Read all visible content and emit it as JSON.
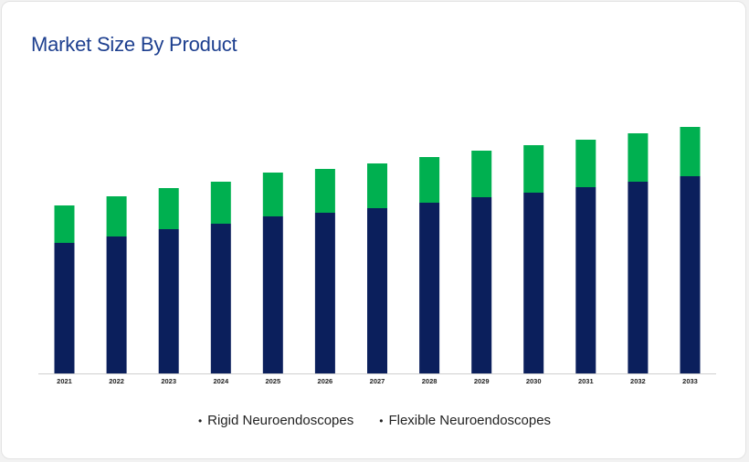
{
  "title": "Market Size By Product",
  "chart_data": {
    "type": "bar",
    "stacked": true,
    "title": "Market Size By Product",
    "xlabel": "",
    "ylabel": "",
    "categories": [
      "2021",
      "2022",
      "2023",
      "2024",
      "2025",
      "2026",
      "2027",
      "2028",
      "2029",
      "2030",
      "2031",
      "2032",
      "2033"
    ],
    "series": [
      {
        "name": "Rigid Neuroendoscopes",
        "color": "#0b1f5c",
        "values": [
          143,
          150,
          158,
          164,
          172,
          176,
          181,
          187,
          193,
          198,
          204,
          210,
          216
        ]
      },
      {
        "name": "Flexible Neuroendoscopes",
        "color": "#00b050",
        "values": [
          41,
          44,
          45,
          46,
          48,
          48,
          49,
          50,
          51,
          52,
          52,
          53,
          54
        ]
      }
    ],
    "ylim": [
      0,
      270
    ],
    "grid": false,
    "legend_position": "bottom"
  }
}
